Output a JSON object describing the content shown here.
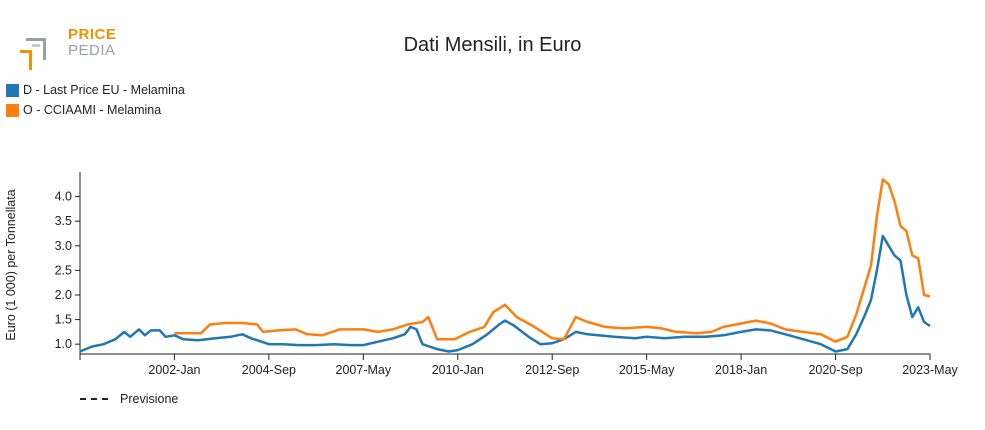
{
  "logo": {
    "line1": "PRICE",
    "line2": "PEDIA"
  },
  "chart_data": {
    "type": "line",
    "title": "Dati Mensili, in Euro",
    "ylabel": "Euro (1 000) per Tonnellata",
    "xlabel": "",
    "ylim": [
      0.8,
      4.5
    ],
    "yticks": [
      1.0,
      1.5,
      2.0,
      2.5,
      3.0,
      3.5,
      4.0
    ],
    "ytick_labels": [
      "1.0",
      "1.5",
      "2.0",
      "2.5",
      "3.0",
      "3.5",
      "4.0"
    ],
    "xlim": [
      "1999-05",
      "2023-05"
    ],
    "xticks": [
      "2002-01",
      "2004-09",
      "2007-05",
      "2010-01",
      "2012-09",
      "2015-05",
      "2018-01",
      "2020-09",
      "2023-05"
    ],
    "xtick_labels": [
      "2002-Jan",
      "2004-Sep",
      "2007-May",
      "2010-Jan",
      "2012-Sep",
      "2015-May",
      "2018-Jan",
      "2020-Sep",
      "2023-May"
    ],
    "legend_position": "top-left",
    "forecast_label": "Previsione",
    "series": [
      {
        "name": "D - Last Price EU - Melamina",
        "color": "#1f77b4",
        "points": [
          [
            "1999-05",
            0.85
          ],
          [
            "1999-09",
            0.95
          ],
          [
            "2000-01",
            1.0
          ],
          [
            "2000-05",
            1.1
          ],
          [
            "2000-08",
            1.25
          ],
          [
            "2000-10",
            1.15
          ],
          [
            "2001-01",
            1.3
          ],
          [
            "2001-03",
            1.18
          ],
          [
            "2001-05",
            1.28
          ],
          [
            "2001-08",
            1.28
          ],
          [
            "2001-10",
            1.15
          ],
          [
            "2002-01",
            1.18
          ],
          [
            "2002-04",
            1.1
          ],
          [
            "2002-09",
            1.08
          ],
          [
            "2003-03",
            1.12
          ],
          [
            "2003-08",
            1.15
          ],
          [
            "2003-12",
            1.2
          ],
          [
            "2004-03",
            1.12
          ],
          [
            "2004-09",
            1.0
          ],
          [
            "2005-02",
            1.0
          ],
          [
            "2005-07",
            0.98
          ],
          [
            "2006-01",
            0.98
          ],
          [
            "2006-07",
            1.0
          ],
          [
            "2007-01",
            0.98
          ],
          [
            "2007-05",
            0.98
          ],
          [
            "2007-10",
            1.05
          ],
          [
            "2008-03",
            1.12
          ],
          [
            "2008-07",
            1.2
          ],
          [
            "2008-09",
            1.35
          ],
          [
            "2008-11",
            1.3
          ],
          [
            "2009-01",
            1.0
          ],
          [
            "2009-06",
            0.9
          ],
          [
            "2009-10",
            0.85
          ],
          [
            "2010-01",
            0.88
          ],
          [
            "2010-06",
            1.0
          ],
          [
            "2010-11",
            1.2
          ],
          [
            "2011-03",
            1.4
          ],
          [
            "2011-05",
            1.48
          ],
          [
            "2011-08",
            1.38
          ],
          [
            "2012-01",
            1.15
          ],
          [
            "2012-05",
            1.0
          ],
          [
            "2012-09",
            1.02
          ],
          [
            "2013-01",
            1.1
          ],
          [
            "2013-05",
            1.25
          ],
          [
            "2013-09",
            1.2
          ],
          [
            "2014-06",
            1.15
          ],
          [
            "2015-01",
            1.12
          ],
          [
            "2015-05",
            1.15
          ],
          [
            "2015-11",
            1.12
          ],
          [
            "2016-06",
            1.15
          ],
          [
            "2017-01",
            1.15
          ],
          [
            "2017-07",
            1.18
          ],
          [
            "2018-01",
            1.25
          ],
          [
            "2018-06",
            1.3
          ],
          [
            "2018-11",
            1.28
          ],
          [
            "2019-04",
            1.2
          ],
          [
            "2019-10",
            1.1
          ],
          [
            "2020-04",
            1.0
          ],
          [
            "2020-09",
            0.85
          ],
          [
            "2021-01",
            0.9
          ],
          [
            "2021-04",
            1.2
          ],
          [
            "2021-07",
            1.6
          ],
          [
            "2021-09",
            1.9
          ],
          [
            "2021-11",
            2.5
          ],
          [
            "2022-01",
            3.2
          ],
          [
            "2022-03",
            3.0
          ],
          [
            "2022-05",
            2.8
          ],
          [
            "2022-07",
            2.7
          ],
          [
            "2022-09",
            2.0
          ],
          [
            "2022-11",
            1.55
          ],
          [
            "2023-01",
            1.75
          ],
          [
            "2023-03",
            1.45
          ],
          [
            "2023-05",
            1.37
          ]
        ]
      },
      {
        "name": "O - CCIAAMI - Melamina",
        "color": "#ff7f0e",
        "points": [
          [
            "2002-01",
            1.22
          ],
          [
            "2002-05",
            1.22
          ],
          [
            "2002-10",
            1.22
          ],
          [
            "2003-01",
            1.4
          ],
          [
            "2003-06",
            1.43
          ],
          [
            "2003-12",
            1.43
          ],
          [
            "2004-05",
            1.4
          ],
          [
            "2004-07",
            1.25
          ],
          [
            "2004-12",
            1.28
          ],
          [
            "2005-06",
            1.3
          ],
          [
            "2005-10",
            1.2
          ],
          [
            "2006-03",
            1.18
          ],
          [
            "2006-09",
            1.3
          ],
          [
            "2007-05",
            1.3
          ],
          [
            "2007-10",
            1.25
          ],
          [
            "2008-03",
            1.3
          ],
          [
            "2008-08",
            1.4
          ],
          [
            "2009-01",
            1.45
          ],
          [
            "2009-03",
            1.55
          ],
          [
            "2009-06",
            1.1
          ],
          [
            "2009-12",
            1.1
          ],
          [
            "2010-05",
            1.25
          ],
          [
            "2010-10",
            1.35
          ],
          [
            "2011-01",
            1.65
          ],
          [
            "2011-05",
            1.8
          ],
          [
            "2011-09",
            1.55
          ],
          [
            "2012-03",
            1.35
          ],
          [
            "2012-09",
            1.12
          ],
          [
            "2013-01",
            1.1
          ],
          [
            "2013-05",
            1.55
          ],
          [
            "2013-09",
            1.45
          ],
          [
            "2014-03",
            1.35
          ],
          [
            "2014-09",
            1.32
          ],
          [
            "2015-05",
            1.35
          ],
          [
            "2015-10",
            1.32
          ],
          [
            "2016-03",
            1.25
          ],
          [
            "2016-10",
            1.22
          ],
          [
            "2017-03",
            1.25
          ],
          [
            "2017-07",
            1.35
          ],
          [
            "2018-01",
            1.42
          ],
          [
            "2018-06",
            1.48
          ],
          [
            "2018-11",
            1.42
          ],
          [
            "2019-04",
            1.3
          ],
          [
            "2019-10",
            1.25
          ],
          [
            "2020-04",
            1.2
          ],
          [
            "2020-09",
            1.05
          ],
          [
            "2021-01",
            1.15
          ],
          [
            "2021-04",
            1.6
          ],
          [
            "2021-07",
            2.2
          ],
          [
            "2021-09",
            2.6
          ],
          [
            "2021-11",
            3.6
          ],
          [
            "2022-01",
            4.35
          ],
          [
            "2022-03",
            4.25
          ],
          [
            "2022-05",
            3.9
          ],
          [
            "2022-07",
            3.4
          ],
          [
            "2022-09",
            3.3
          ],
          [
            "2022-11",
            2.8
          ],
          [
            "2023-01",
            2.75
          ],
          [
            "2023-03",
            2.0
          ],
          [
            "2023-05",
            1.97
          ]
        ]
      }
    ]
  }
}
